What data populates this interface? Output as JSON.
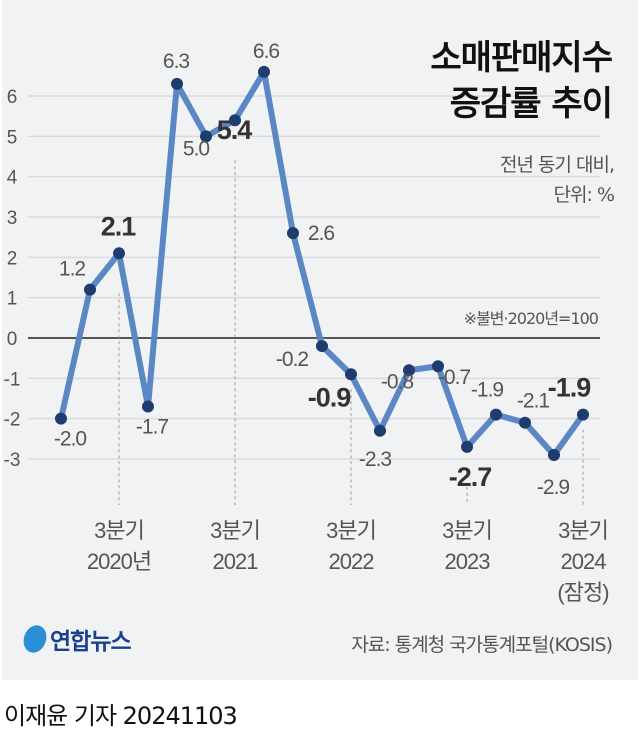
{
  "chart_data": {
    "type": "line",
    "title": "소매판매지수 증감률 추이",
    "title_lines": [
      "소매판매지수",
      "증감률 추이"
    ],
    "subtitle_lines": [
      "전년 동기 대비,",
      "단위: %"
    ],
    "note": "※불변·2020년=100",
    "ylim": [
      -3,
      6
    ],
    "yticks": [
      "6",
      "5",
      "4",
      "3",
      "2",
      "1",
      "0",
      "-1",
      "-2",
      "-3"
    ],
    "grid": true,
    "line_color": "#5b87c5",
    "point_color": "#1f3c6e",
    "x_tick_labels": [
      {
        "index": 2,
        "lines": [
          "3분기",
          "2020년"
        ]
      },
      {
        "index": 6,
        "lines": [
          "3분기",
          "2021"
        ]
      },
      {
        "index": 10,
        "lines": [
          "3분기",
          "2022"
        ]
      },
      {
        "index": 14,
        "lines": [
          "3분기",
          "2023"
        ]
      },
      {
        "index": 18,
        "lines": [
          "3분기",
          "2024",
          "(잠정)"
        ]
      }
    ],
    "values": [
      -2.0,
      1.2,
      2.1,
      -1.7,
      6.3,
      5.0,
      5.4,
      6.6,
      2.6,
      -0.2,
      -0.9,
      -2.3,
      -0.8,
      -0.7,
      -2.7,
      -1.9,
      -2.1,
      -2.9,
      -1.9
    ],
    "data_labels": [
      "-2.0",
      "1.2",
      "2.1",
      "-1.7",
      "6.3",
      "5.0",
      "5.4",
      "6.6",
      "2.6",
      "-0.2",
      "-0.9",
      "-2.3",
      "-0.8",
      "-0.7",
      "-2.7",
      "-1.9",
      "-2.1",
      "-2.9",
      "-1.9"
    ],
    "bold_labels": [
      2,
      6,
      10,
      14,
      18
    ]
  },
  "footer": {
    "logo_text": "연합뉴스",
    "source": "자료: 통계청 국가통계포털(KOSIS)",
    "byline": "이재윤 기자  20241103"
  }
}
